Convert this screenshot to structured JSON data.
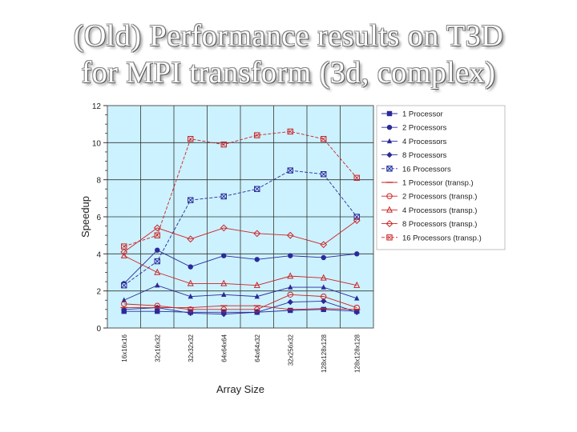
{
  "slide": {
    "title_line1": "(Old) Performance results on T3D",
    "title_line2": "for MPI transform (3d, complex)"
  },
  "chart_data": {
    "type": "line",
    "title": "",
    "xlabel": "Array Size",
    "ylabel": "Speedup",
    "ylim": [
      0,
      12
    ],
    "yticks": [
      0,
      2,
      4,
      6,
      8,
      10,
      12
    ],
    "grid": true,
    "legend_position": "right",
    "categories": [
      "16x16x16",
      "32x16x32",
      "32x32x32",
      "64x64x64",
      "64x64x32",
      "32x256x32",
      "128x128x128",
      "128x128x128 "
    ],
    "series": [
      {
        "name": "1 Processor",
        "marker": "square-filled",
        "color": "#2a2a9a",
        "dash": false,
        "values": [
          0.9,
          0.9,
          0.85,
          0.85,
          0.85,
          0.95,
          1.0,
          0.9
        ]
      },
      {
        "name": "2 Processors",
        "marker": "circle-filled",
        "color": "#2a2a9a",
        "dash": false,
        "values": [
          2.4,
          4.2,
          3.3,
          3.9,
          3.7,
          3.9,
          3.8,
          4.0
        ]
      },
      {
        "name": "4 Processors",
        "marker": "triangle-filled",
        "color": "#2a2a9a",
        "dash": false,
        "values": [
          1.5,
          2.3,
          1.7,
          1.8,
          1.7,
          2.2,
          2.2,
          1.6
        ]
      },
      {
        "name": "8 Processors",
        "marker": "diamond-filled",
        "color": "#2a2a9a",
        "dash": false,
        "values": [
          1.0,
          1.1,
          0.8,
          0.75,
          0.85,
          1.4,
          1.45,
          0.85
        ]
      },
      {
        "name": "16 Processors",
        "marker": "xbox",
        "color": "#2a2a9a",
        "dash": true,
        "values": [
          2.3,
          3.6,
          6.9,
          7.1,
          7.5,
          8.5,
          8.3,
          6.0
        ]
      },
      {
        "name": "1 Processor (transp.)",
        "marker": "dash",
        "color": "#cc2222",
        "dash": false,
        "values": [
          1.1,
          1.1,
          1.1,
          1.2,
          1.2,
          1.0,
          1.05,
          1.0
        ]
      },
      {
        "name": "2 Processors (transp.)",
        "marker": "circle-open",
        "color": "#cc2222",
        "dash": false,
        "values": [
          1.3,
          1.2,
          1.0,
          1.0,
          1.0,
          1.8,
          1.7,
          1.1
        ]
      },
      {
        "name": "4 Processors (transp.)",
        "marker": "triangle-open",
        "color": "#cc2222",
        "dash": false,
        "values": [
          3.9,
          3.0,
          2.4,
          2.4,
          2.3,
          2.8,
          2.7,
          2.3
        ]
      },
      {
        "name": "8 Processors (transp.)",
        "marker": "diamond-open",
        "color": "#cc2222",
        "dash": false,
        "values": [
          4.1,
          5.4,
          4.8,
          5.4,
          5.1,
          5.0,
          4.5,
          5.8
        ]
      },
      {
        "name": "16 Processors (transp.)",
        "marker": "xbox-open",
        "color": "#cc2222",
        "dash": true,
        "values": [
          4.4,
          5.0,
          10.2,
          9.9,
          10.4,
          10.6,
          10.2,
          8.1
        ]
      }
    ]
  }
}
